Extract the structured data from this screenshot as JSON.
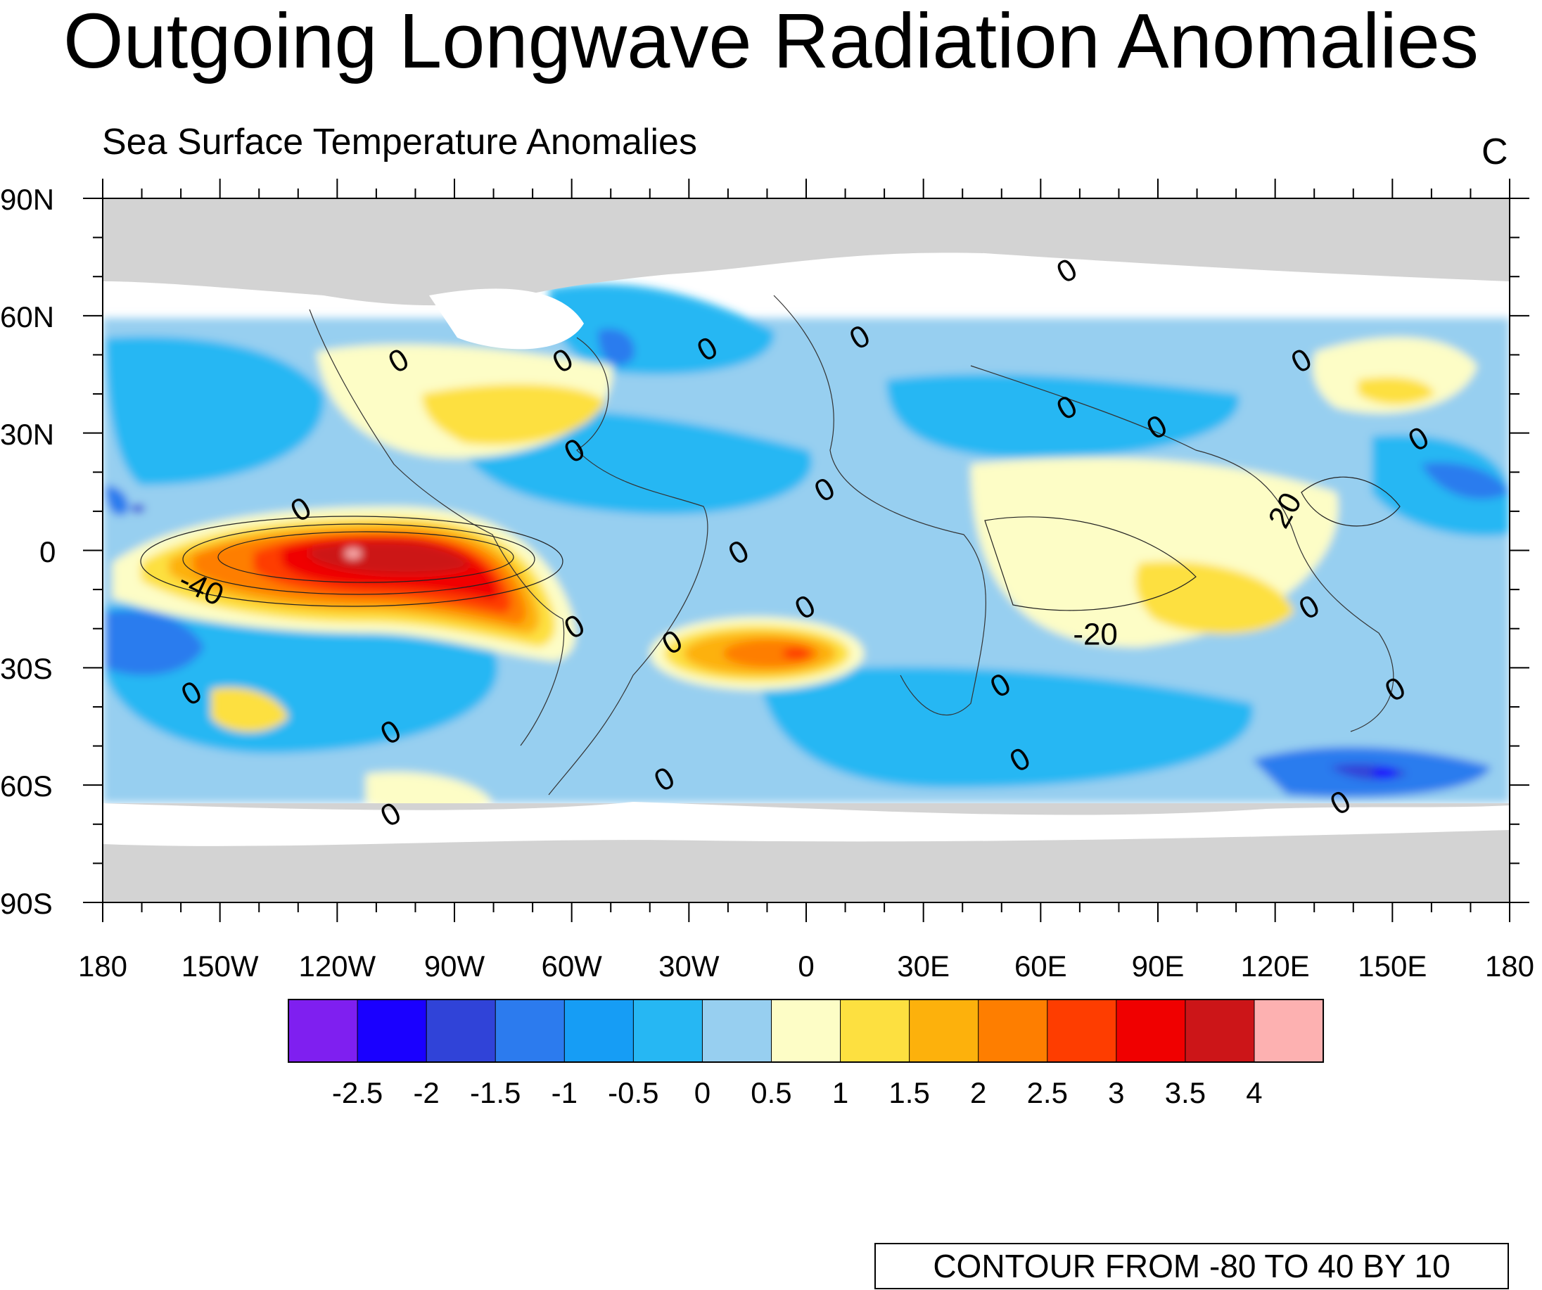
{
  "title": "Outgoing Longwave Radiation Anomalies",
  "subtitle": "Sea Surface Temperature Anomalies",
  "corner_label": "C",
  "contour_note": "CONTOUR FROM -80 TO 40 BY 10",
  "lat_labels": [
    "90N",
    "60N",
    "30N",
    "0",
    "30S",
    "60S",
    "90S"
  ],
  "lon_labels": [
    "180",
    "150W",
    "120W",
    "90W",
    "60W",
    "30W",
    "0",
    "30E",
    "60E",
    "90E",
    "120E",
    "150E",
    "180"
  ],
  "colorbar": {
    "labels": [
      "-2.5",
      "-2",
      "-1.5",
      "-1",
      "-0.5",
      "0",
      "0.5",
      "1",
      "1.5",
      "2",
      "2.5",
      "3",
      "3.5",
      "4"
    ],
    "colors": [
      "#7f1ff0",
      "#1a00ff",
      "#3043d8",
      "#2c7bee",
      "#169df5",
      "#26b7f3",
      "#97cff0",
      "#fdfdc6",
      "#fde040",
      "#fdb10c",
      "#fe7e00",
      "#fe3d00",
      "#f00000",
      "#cc1518",
      "#fdb1b1"
    ]
  },
  "contour_labels": [
    {
      "text": "0",
      "lon": -104,
      "lat": 48
    },
    {
      "text": "0",
      "lon": -62,
      "lat": 48
    },
    {
      "text": "0",
      "lon": -25,
      "lat": 51
    },
    {
      "text": "0",
      "lon": 14,
      "lat": 54
    },
    {
      "text": "0",
      "lon": 67,
      "lat": 71
    },
    {
      "text": "0",
      "lon": 67,
      "lat": 36
    },
    {
      "text": "0",
      "lon": 90,
      "lat": 31
    },
    {
      "text": "0",
      "lon": 127,
      "lat": 48
    },
    {
      "text": "0",
      "lon": 157,
      "lat": 28
    },
    {
      "text": "0",
      "lon": -59,
      "lat": 25
    },
    {
      "text": "0",
      "lon": 5,
      "lat": 15
    },
    {
      "text": "0",
      "lon": -129,
      "lat": 10
    },
    {
      "text": "0",
      "lon": -17,
      "lat": -1
    },
    {
      "text": "0",
      "lon": 0,
      "lat": -15
    },
    {
      "text": "0",
      "lon": -59,
      "lat": -20
    },
    {
      "text": "0",
      "lon": -34,
      "lat": -24
    },
    {
      "text": "0",
      "lon": 129,
      "lat": -15
    },
    {
      "text": "0",
      "lon": -157,
      "lat": -37
    },
    {
      "text": "0",
      "lon": 50,
      "lat": -35
    },
    {
      "text": "0",
      "lon": 151,
      "lat": -36
    },
    {
      "text": "0",
      "lon": -106,
      "lat": -47
    },
    {
      "text": "0",
      "lon": -36,
      "lat": -59
    },
    {
      "text": "0",
      "lon": 55,
      "lat": -54
    },
    {
      "text": "0",
      "lon": -106,
      "lat": -68
    },
    {
      "text": "0",
      "lon": 137,
      "lat": -65
    },
    {
      "text": "-40",
      "lon": -155,
      "lat": -10
    },
    {
      "text": "-20",
      "lon": 74,
      "lat": -22
    },
    {
      "text": "20",
      "lon": 123,
      "lat": 10
    }
  ],
  "fields": [
    {
      "name": "nino-east-pacific",
      "kind": "warm",
      "value": 3.8,
      "lon": -115,
      "lat": -2
    },
    {
      "name": "south-atlantic-warm",
      "kind": "warm",
      "value": 2.7,
      "lon": -3,
      "lat": -26
    },
    {
      "name": "nw-atlantic-warm",
      "kind": "warm",
      "value": 1.3,
      "lon": -70,
      "lat": 37
    },
    {
      "name": "north-pacific-cold",
      "kind": "cold",
      "value": -1.7,
      "lon": -172,
      "lat": 12
    },
    {
      "name": "southern-ocean-cold",
      "kind": "cold",
      "value": -2.0,
      "lon": 148,
      "lat": -57
    },
    {
      "name": "indian-ocean-warm",
      "kind": "warm",
      "value": 1.0,
      "lon": 65,
      "lat": -5
    }
  ]
}
